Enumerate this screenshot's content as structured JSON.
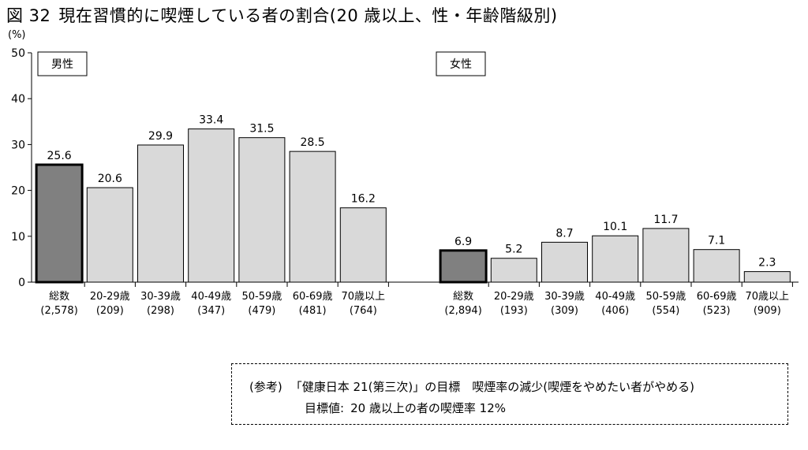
{
  "title": {
    "figure_no": "図 32",
    "text": "現在習慣的に喫煙している者の割合(20 歳以上、性・年齢階級別)"
  },
  "chart_data": {
    "type": "bar",
    "y_unit": "(%)",
    "ylim": [
      0,
      50
    ],
    "yticks": [
      0,
      10,
      20,
      30,
      40,
      50
    ],
    "groups": [
      {
        "label": "男性",
        "categories": [
          "総数",
          "20-29歳",
          "30-39歳",
          "40-49歳",
          "50-59歳",
          "60-69歳",
          "70歳以上"
        ],
        "counts": [
          "(2,578)",
          "(209)",
          "(298)",
          "(347)",
          "(479)",
          "(481)",
          "(764)"
        ],
        "values": [
          25.6,
          20.6,
          29.9,
          33.4,
          31.5,
          28.5,
          16.2
        ],
        "value_labels": [
          "25.6",
          "20.6",
          "29.9",
          "33.4",
          "31.5",
          "28.5",
          "16.2"
        ]
      },
      {
        "label": "女性",
        "categories": [
          "総数",
          "20-29歳",
          "30-39歳",
          "40-49歳",
          "50-59歳",
          "60-69歳",
          "70歳以上"
        ],
        "counts": [
          "(2,894)",
          "(193)",
          "(309)",
          "(406)",
          "(554)",
          "(523)",
          "(909)"
        ],
        "values": [
          6.9,
          5.2,
          8.7,
          10.1,
          11.7,
          7.1,
          2.3
        ],
        "value_labels": [
          "6.9",
          "5.2",
          "8.7",
          "10.1",
          "11.7",
          "7.1",
          "2.3"
        ]
      }
    ],
    "colors": {
      "total_bar": "#808080",
      "age_bar": "#d9d9d9"
    }
  },
  "note": {
    "line1_prefix": "(参考)",
    "line1_text": "「健康日本 21(第三次)」の目標　喫煙率の減少(喫煙をやめたい者がやめる)",
    "line2_label": "目標値:",
    "line2_text": "20 歳以上の者の喫煙率 12%"
  }
}
